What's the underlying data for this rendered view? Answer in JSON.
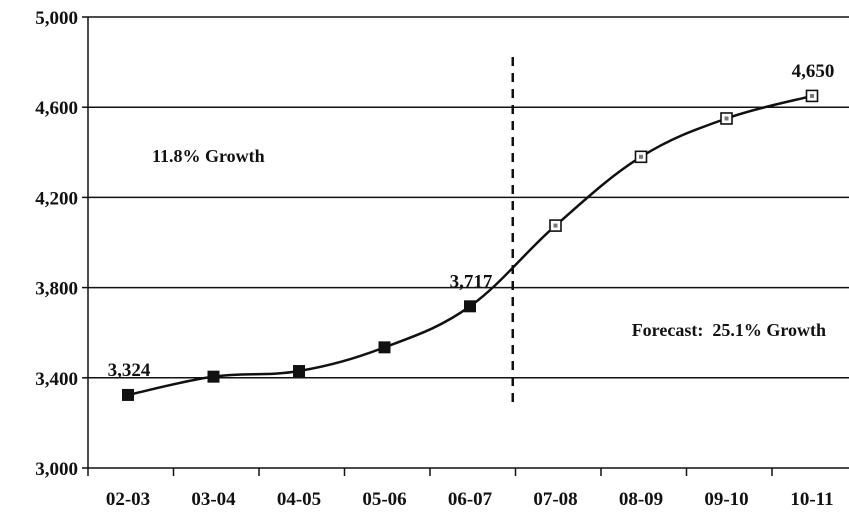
{
  "chart_data": {
    "type": "line",
    "title": "",
    "xlabel": "",
    "ylabel": "",
    "categories": [
      "02-03",
      "03-04",
      "04-05",
      "05-06",
      "06-07",
      "07-08",
      "08-09",
      "09-10",
      "10-11"
    ],
    "series": [
      {
        "name": "",
        "values": [
          3324,
          3405,
          3430,
          3535,
          3717,
          4075,
          4380,
          4550,
          4650
        ],
        "actual_count": 5,
        "colors": {
          "actual_marker": "#111111",
          "forecast_marker": "#ffffff",
          "line": "#111111"
        }
      }
    ],
    "ylim": [
      3000,
      5000
    ],
    "y_ticks": [
      3000,
      3400,
      3800,
      4200,
      4600,
      5000
    ],
    "y_tick_labels": [
      "3,000",
      "3,400",
      "3,800",
      "4,200",
      "4,600",
      "5,000"
    ],
    "grid": {
      "horizontal": true,
      "vertical": false
    },
    "divider": {
      "after_category": "06-07",
      "style": "dashed"
    },
    "data_labels": [
      {
        "category": "02-03",
        "text": "3,324"
      },
      {
        "category": "06-07",
        "text": "3,717"
      },
      {
        "category": "10-11",
        "text": "4,650"
      }
    ],
    "annotations": [
      {
        "text": "11.8% Growth",
        "anchor": "upper-left"
      },
      {
        "text": "Forecast:  25.1% Growth",
        "anchor": "lower-right"
      }
    ]
  }
}
